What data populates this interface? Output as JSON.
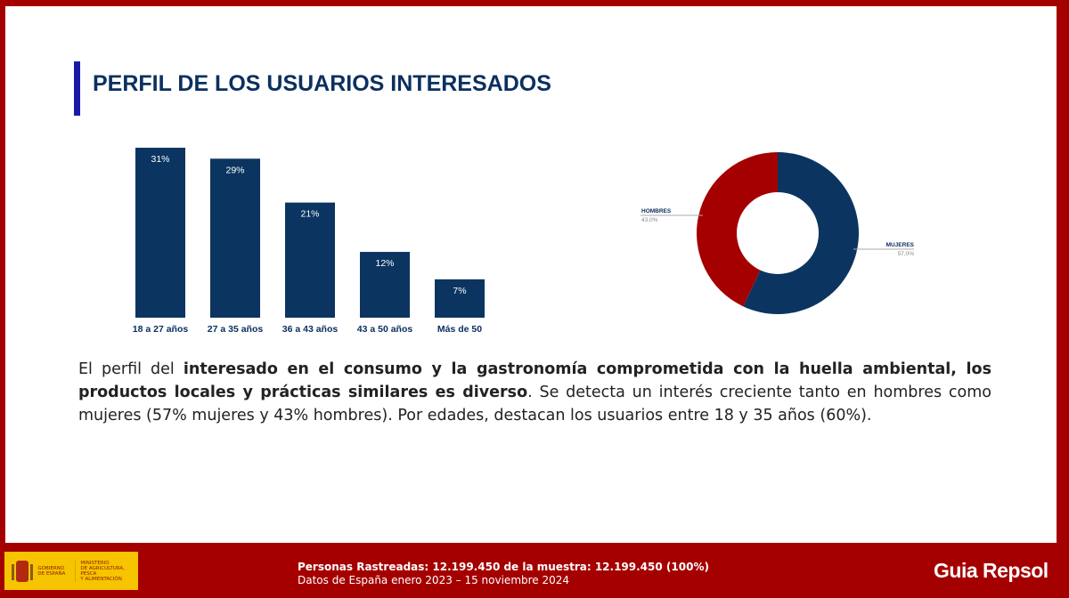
{
  "title": "PERFIL DE LOS USUARIOS INTERESADOS",
  "chart_data": [
    {
      "type": "bar",
      "categories": [
        "18 a 27 años",
        "27 a 35 años",
        "36 a 43 años",
        "43 a 50 años",
        "Más de 50"
      ],
      "values": [
        31,
        29,
        21,
        12,
        7
      ],
      "data_labels": [
        "31%",
        "29%",
        "21%",
        "12%",
        "7%"
      ],
      "ylim": [
        0,
        31
      ],
      "color": "#0b3560",
      "grid": false
    },
    {
      "type": "pie",
      "donut": true,
      "slices": [
        {
          "name": "MUJERES",
          "value": 57.0,
          "label": "57,0%",
          "color": "#0b3560"
        },
        {
          "name": "HOMBRES",
          "value": 43.0,
          "label": "43,0%",
          "color": "#a50000"
        }
      ]
    }
  ],
  "paragraph": {
    "p1": "El perfil del ",
    "b1": "interesado en el consumo y la gastronomía comprometida con la huella ambiental, los productos locales y prácticas similares es diverso",
    "p2": ". Se detecta un interés creciente tanto en hombres como mujeres (57% mujeres y 43% hombres). Por edades, destacan los usuarios entre 18 y 35 años (60%)."
  },
  "footer": {
    "line1": "Personas Rastreadas: 12.199.450  de la muestra: 12.199.450 (100%)",
    "line2": "Datos de España enero 2023 – 15 noviembre 2024",
    "gov_logo": "GOBIERNO DE ESPAÑA · MINISTERIO DE AGRICULTURA, PESCA Y ALIMENTACIÓN",
    "brand": "Guia Repsol"
  }
}
